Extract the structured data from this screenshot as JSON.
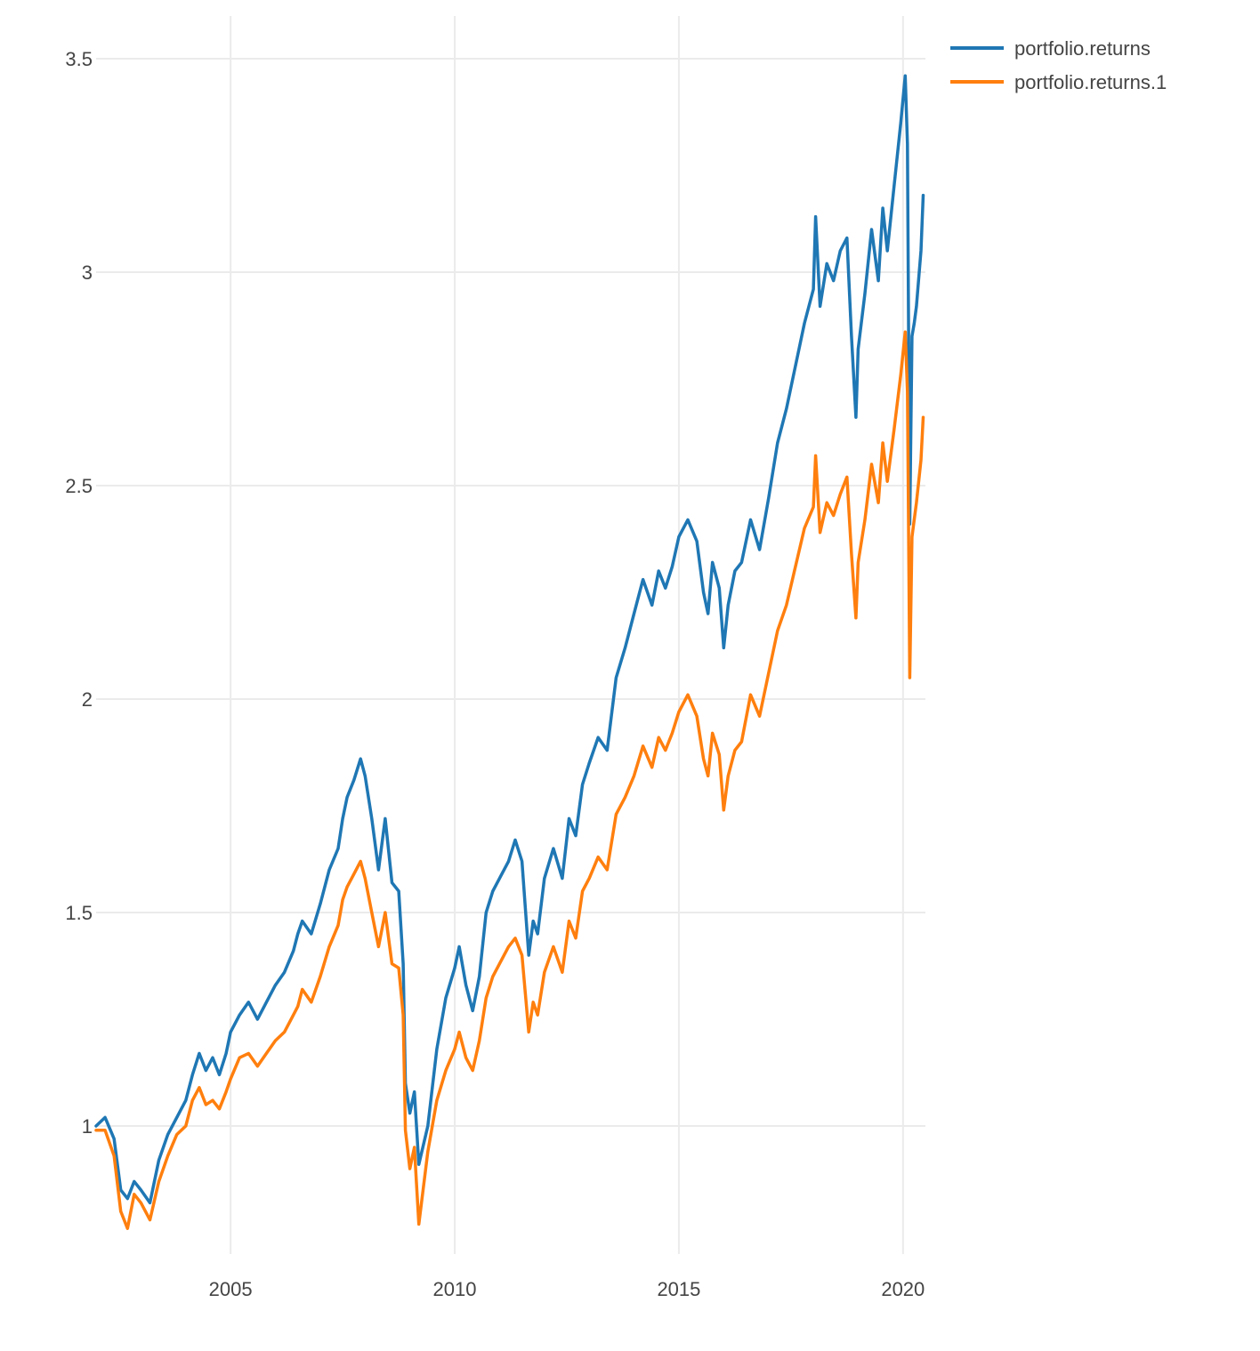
{
  "chart_data": {
    "type": "line",
    "title": "",
    "xlabel": "",
    "ylabel": "",
    "xlim": [
      2002.0,
      2020.5
    ],
    "ylim": [
      0.7,
      3.6
    ],
    "grid": true,
    "legend_position": "top-right",
    "x_ticks": [
      {
        "value": 2005,
        "label": "2005"
      },
      {
        "value": 2010,
        "label": "2010"
      },
      {
        "value": 2015,
        "label": "2015"
      },
      {
        "value": 2020,
        "label": "2020"
      }
    ],
    "y_ticks": [
      {
        "value": 1,
        "label": "1"
      },
      {
        "value": 1.5,
        "label": "1.5"
      },
      {
        "value": 2,
        "label": "2"
      },
      {
        "value": 2.5,
        "label": "2.5"
      },
      {
        "value": 3,
        "label": "3"
      },
      {
        "value": 3.5,
        "label": "3.5"
      }
    ],
    "series": [
      {
        "name": "portfolio.returns",
        "color": "#1f77b4",
        "x": [
          2002.0,
          2002.2,
          2002.4,
          2002.55,
          2002.7,
          2002.85,
          2003.0,
          2003.2,
          2003.4,
          2003.6,
          2003.8,
          2004.0,
          2004.15,
          2004.3,
          2004.45,
          2004.6,
          2004.75,
          2004.9,
          2005.0,
          2005.2,
          2005.4,
          2005.6,
          2005.8,
          2006.0,
          2006.2,
          2006.4,
          2006.5,
          2006.6,
          2006.8,
          2007.0,
          2007.2,
          2007.4,
          2007.5,
          2007.6,
          2007.75,
          2007.9,
          2008.0,
          2008.15,
          2008.3,
          2008.45,
          2008.6,
          2008.75,
          2008.85,
          2008.9,
          2009.0,
          2009.1,
          2009.2,
          2009.4,
          2009.6,
          2009.8,
          2010.0,
          2010.1,
          2010.25,
          2010.4,
          2010.55,
          2010.7,
          2010.85,
          2011.0,
          2011.2,
          2011.35,
          2011.5,
          2011.65,
          2011.75,
          2011.85,
          2012.0,
          2012.2,
          2012.4,
          2012.55,
          2012.7,
          2012.85,
          2013.0,
          2013.2,
          2013.4,
          2013.6,
          2013.8,
          2014.0,
          2014.2,
          2014.4,
          2014.55,
          2014.7,
          2014.85,
          2015.0,
          2015.2,
          2015.4,
          2015.55,
          2015.65,
          2015.75,
          2015.9,
          2016.0,
          2016.1,
          2016.25,
          2016.4,
          2016.6,
          2016.8,
          2017.0,
          2017.2,
          2017.4,
          2017.6,
          2017.8,
          2018.0,
          2018.05,
          2018.15,
          2018.3,
          2018.45,
          2018.6,
          2018.75,
          2018.85,
          2018.95,
          2019.0,
          2019.15,
          2019.3,
          2019.45,
          2019.55,
          2019.65,
          2019.8,
          2019.95,
          2020.05,
          2020.1,
          2020.15,
          2020.2,
          2020.25,
          2020.3,
          2020.4,
          2020.45
        ],
        "values": [
          1.0,
          1.02,
          0.97,
          0.85,
          0.83,
          0.87,
          0.85,
          0.82,
          0.92,
          0.98,
          1.02,
          1.06,
          1.12,
          1.17,
          1.13,
          1.16,
          1.12,
          1.17,
          1.22,
          1.26,
          1.29,
          1.25,
          1.29,
          1.33,
          1.36,
          1.41,
          1.45,
          1.48,
          1.45,
          1.52,
          1.6,
          1.65,
          1.72,
          1.77,
          1.81,
          1.86,
          1.82,
          1.72,
          1.6,
          1.72,
          1.57,
          1.55,
          1.38,
          1.1,
          1.03,
          1.08,
          0.91,
          1.0,
          1.18,
          1.3,
          1.37,
          1.42,
          1.33,
          1.27,
          1.35,
          1.5,
          1.55,
          1.58,
          1.62,
          1.67,
          1.62,
          1.4,
          1.48,
          1.45,
          1.58,
          1.65,
          1.58,
          1.72,
          1.68,
          1.8,
          1.85,
          1.91,
          1.88,
          2.05,
          2.12,
          2.2,
          2.28,
          2.22,
          2.3,
          2.26,
          2.31,
          2.38,
          2.42,
          2.37,
          2.25,
          2.2,
          2.32,
          2.26,
          2.12,
          2.22,
          2.3,
          2.32,
          2.42,
          2.35,
          2.47,
          2.6,
          2.68,
          2.78,
          2.88,
          2.96,
          3.13,
          2.92,
          3.02,
          2.98,
          3.05,
          3.08,
          2.85,
          2.66,
          2.82,
          2.95,
          3.1,
          2.98,
          3.15,
          3.05,
          3.2,
          3.35,
          3.46,
          3.3,
          2.41,
          2.85,
          2.88,
          2.92,
          3.05,
          3.18
        ]
      },
      {
        "name": "portfolio.returns.1",
        "color": "#ff7f0e",
        "x": [
          2002.0,
          2002.2,
          2002.4,
          2002.55,
          2002.7,
          2002.85,
          2003.0,
          2003.2,
          2003.4,
          2003.6,
          2003.8,
          2004.0,
          2004.15,
          2004.3,
          2004.45,
          2004.6,
          2004.75,
          2004.9,
          2005.0,
          2005.2,
          2005.4,
          2005.6,
          2005.8,
          2006.0,
          2006.2,
          2006.4,
          2006.5,
          2006.6,
          2006.8,
          2007.0,
          2007.2,
          2007.4,
          2007.5,
          2007.6,
          2007.75,
          2007.9,
          2008.0,
          2008.15,
          2008.3,
          2008.45,
          2008.6,
          2008.75,
          2008.85,
          2008.9,
          2009.0,
          2009.1,
          2009.2,
          2009.4,
          2009.6,
          2009.8,
          2010.0,
          2010.1,
          2010.25,
          2010.4,
          2010.55,
          2010.7,
          2010.85,
          2011.0,
          2011.2,
          2011.35,
          2011.5,
          2011.65,
          2011.75,
          2011.85,
          2012.0,
          2012.2,
          2012.4,
          2012.55,
          2012.7,
          2012.85,
          2013.0,
          2013.2,
          2013.4,
          2013.6,
          2013.8,
          2014.0,
          2014.2,
          2014.4,
          2014.55,
          2014.7,
          2014.85,
          2015.0,
          2015.2,
          2015.4,
          2015.55,
          2015.65,
          2015.75,
          2015.9,
          2016.0,
          2016.1,
          2016.25,
          2016.4,
          2016.6,
          2016.8,
          2017.0,
          2017.2,
          2017.4,
          2017.6,
          2017.8,
          2018.0,
          2018.05,
          2018.15,
          2018.3,
          2018.45,
          2018.6,
          2018.75,
          2018.85,
          2018.95,
          2019.0,
          2019.15,
          2019.3,
          2019.45,
          2019.55,
          2019.65,
          2019.8,
          2019.95,
          2020.05,
          2020.1,
          2020.15,
          2020.2,
          2020.25,
          2020.3,
          2020.4,
          2020.45
        ],
        "values": [
          0.99,
          0.99,
          0.93,
          0.8,
          0.76,
          0.84,
          0.82,
          0.78,
          0.87,
          0.93,
          0.98,
          1.0,
          1.06,
          1.09,
          1.05,
          1.06,
          1.04,
          1.08,
          1.11,
          1.16,
          1.17,
          1.14,
          1.17,
          1.2,
          1.22,
          1.26,
          1.28,
          1.32,
          1.29,
          1.35,
          1.42,
          1.47,
          1.53,
          1.56,
          1.59,
          1.62,
          1.58,
          1.5,
          1.42,
          1.5,
          1.38,
          1.37,
          1.26,
          0.99,
          0.9,
          0.95,
          0.77,
          0.94,
          1.06,
          1.13,
          1.18,
          1.22,
          1.16,
          1.13,
          1.2,
          1.3,
          1.35,
          1.38,
          1.42,
          1.44,
          1.4,
          1.22,
          1.29,
          1.26,
          1.36,
          1.42,
          1.36,
          1.48,
          1.44,
          1.55,
          1.58,
          1.63,
          1.6,
          1.73,
          1.77,
          1.82,
          1.89,
          1.84,
          1.91,
          1.88,
          1.92,
          1.97,
          2.01,
          1.96,
          1.86,
          1.82,
          1.92,
          1.87,
          1.74,
          1.82,
          1.88,
          1.9,
          2.01,
          1.96,
          2.06,
          2.16,
          2.22,
          2.31,
          2.4,
          2.45,
          2.57,
          2.39,
          2.46,
          2.43,
          2.48,
          2.52,
          2.34,
          2.19,
          2.32,
          2.42,
          2.55,
          2.46,
          2.6,
          2.51,
          2.63,
          2.76,
          2.86,
          2.72,
          2.05,
          2.38,
          2.42,
          2.46,
          2.56,
          2.66
        ]
      }
    ]
  }
}
